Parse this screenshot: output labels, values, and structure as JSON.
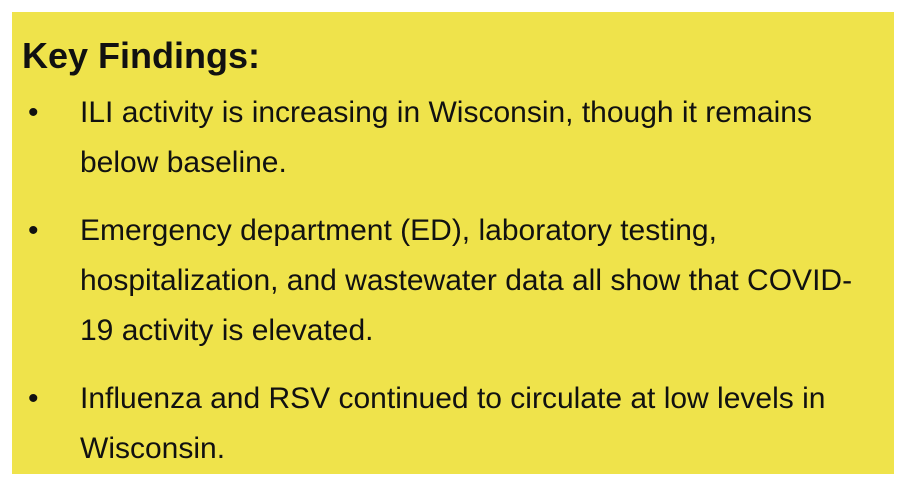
{
  "header": {
    "title": "Key Findings:"
  },
  "findings": [
    "ILI activity is increasing in Wisconsin, though it remains below baseline.",
    "Emergency department (ED), laboratory testing, hospitalization, and wastewater data all show that COVID-19 activity is elevated.",
    "Influenza and RSV continued to circulate at low levels in Wisconsin."
  ]
}
